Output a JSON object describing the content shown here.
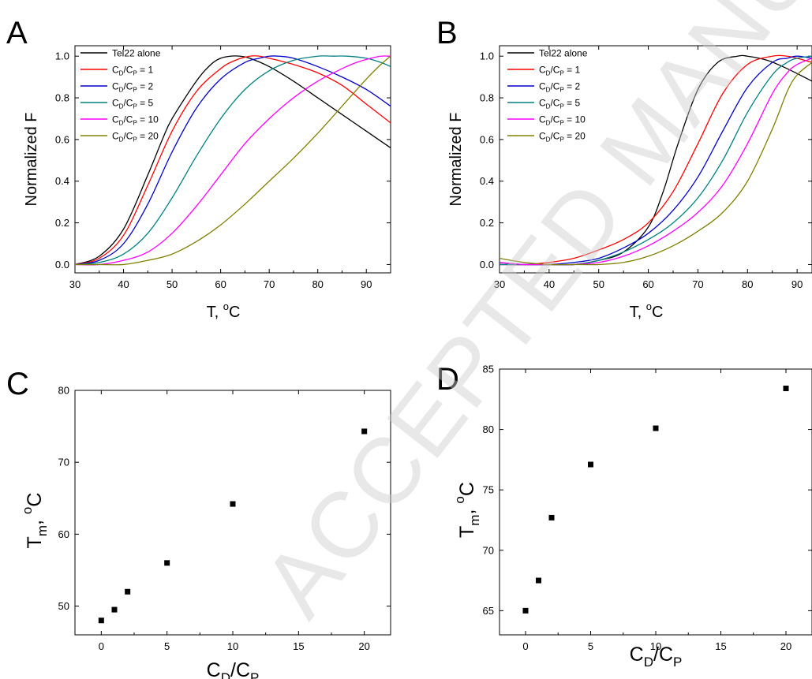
{
  "watermark": "ACCEPTED MANUSCRIPT",
  "colors": {
    "tel22": "#000000",
    "r1": "#ff0000",
    "r2": "#0000cc",
    "r5": "#008080",
    "r10": "#ff00ff",
    "r20": "#808000",
    "points": "#000000"
  },
  "chart_data": [
    {
      "panel": "A",
      "type": "line",
      "xlabel": "T, °C",
      "ylabel": "Normalized F",
      "xlim": [
        30,
        95
      ],
      "ylim": [
        -0.04,
        1.05
      ],
      "xticks": [
        "30",
        "40",
        "50",
        "60",
        "70",
        "80",
        "90"
      ],
      "yticks": [
        "0.0",
        "0.2",
        "0.4",
        "0.6",
        "0.8",
        "1.0"
      ],
      "legend": "top-left",
      "series": [
        {
          "name": "Tel22 alone",
          "color_key": "tel22",
          "x": [
            30,
            35,
            40,
            45,
            48,
            50,
            55,
            58,
            60,
            62,
            64,
            66,
            70,
            75,
            80,
            85,
            90,
            95
          ],
          "y": [
            0.0,
            0.04,
            0.17,
            0.43,
            0.6,
            0.7,
            0.88,
            0.96,
            0.99,
            1.0,
            1.0,
            0.99,
            0.95,
            0.88,
            0.8,
            0.72,
            0.64,
            0.56
          ]
        },
        {
          "name": "C",
          "label_sub1": "D",
          "label_mid": "/C",
          "label_sub2": "P",
          "label_end": " = 1",
          "color_key": "r1",
          "x": [
            30,
            35,
            40,
            45,
            50,
            55,
            60,
            63,
            66,
            68,
            70,
            75,
            80,
            85,
            90,
            95
          ],
          "y": [
            0.0,
            0.03,
            0.14,
            0.38,
            0.64,
            0.83,
            0.94,
            0.98,
            1.0,
            1.0,
            0.99,
            0.96,
            0.92,
            0.86,
            0.77,
            0.68
          ]
        },
        {
          "name": "C",
          "label_sub1": "D",
          "label_mid": "/C",
          "label_sub2": "P",
          "label_end": " = 2",
          "color_key": "r2",
          "x": [
            30,
            35,
            40,
            45,
            50,
            55,
            60,
            65,
            68,
            70,
            72,
            75,
            80,
            85,
            90,
            95
          ],
          "y": [
            0.0,
            0.02,
            0.1,
            0.29,
            0.54,
            0.75,
            0.89,
            0.97,
            0.99,
            1.0,
            1.0,
            0.99,
            0.95,
            0.9,
            0.84,
            0.76
          ]
        },
        {
          "name": "C",
          "label_sub1": "D",
          "label_mid": "/C",
          "label_sub2": "P",
          "label_end": " = 5",
          "color_key": "r5",
          "x": [
            30,
            35,
            40,
            45,
            50,
            55,
            60,
            65,
            70,
            75,
            80,
            83,
            86,
            90,
            93,
            95
          ],
          "y": [
            0.0,
            0.01,
            0.05,
            0.15,
            0.32,
            0.52,
            0.7,
            0.84,
            0.93,
            0.98,
            1.0,
            1.0,
            1.0,
            0.99,
            0.97,
            0.95
          ]
        },
        {
          "name": "C",
          "label_sub1": "D",
          "label_mid": "/C",
          "label_sub2": "P",
          "label_end": " = 10",
          "color_key": "r10",
          "x": [
            30,
            35,
            40,
            45,
            50,
            55,
            60,
            65,
            70,
            75,
            80,
            85,
            88,
            91,
            93,
            95
          ],
          "y": [
            0.0,
            0.0,
            0.02,
            0.06,
            0.15,
            0.28,
            0.43,
            0.58,
            0.7,
            0.8,
            0.88,
            0.94,
            0.97,
            0.99,
            1.0,
            1.0
          ]
        },
        {
          "name": "C",
          "label_sub1": "D",
          "label_mid": "/C",
          "label_sub2": "P",
          "label_end": " = 20",
          "color_key": "r20",
          "x": [
            30,
            35,
            40,
            45,
            50,
            55,
            60,
            65,
            70,
            75,
            80,
            85,
            90,
            93,
            95
          ],
          "y": [
            0.0,
            0.0,
            0.0,
            0.02,
            0.05,
            0.11,
            0.19,
            0.29,
            0.4,
            0.51,
            0.63,
            0.76,
            0.89,
            0.96,
            1.0
          ]
        }
      ]
    },
    {
      "panel": "B",
      "type": "line",
      "xlabel": "T, °C",
      "ylabel": "Normalized F",
      "xlim": [
        30,
        93
      ],
      "ylim": [
        -0.04,
        1.05
      ],
      "xticks": [
        "30",
        "40",
        "50",
        "60",
        "70",
        "80",
        "90"
      ],
      "yticks": [
        "0.0",
        "0.2",
        "0.4",
        "0.6",
        "0.8",
        "1.0"
      ],
      "legend": "top-left",
      "series": [
        {
          "name": "Tel22 alone",
          "color_key": "tel22",
          "x": [
            30,
            35,
            40,
            45,
            50,
            55,
            60,
            63,
            66,
            70,
            74,
            78,
            80,
            84,
            88,
            93
          ],
          "y": [
            0.01,
            0.0,
            0.0,
            0.0,
            0.02,
            0.06,
            0.18,
            0.35,
            0.58,
            0.84,
            0.97,
            1.0,
            1.0,
            0.98,
            0.94,
            0.88
          ]
        },
        {
          "name": "C",
          "label_sub1": "D",
          "label_mid": "/C",
          "label_sub2": "P",
          "label_end": " = 1",
          "color_key": "r1",
          "x": [
            30,
            35,
            40,
            45,
            50,
            55,
            60,
            65,
            70,
            75,
            80,
            85,
            88,
            90,
            93
          ],
          "y": [
            0.0,
            0.0,
            0.01,
            0.03,
            0.07,
            0.12,
            0.2,
            0.35,
            0.58,
            0.82,
            0.96,
            1.0,
            1.0,
            0.99,
            0.97
          ]
        },
        {
          "name": "C",
          "label_sub1": "D",
          "label_mid": "/C",
          "label_sub2": "P",
          "label_end": " = 2",
          "color_key": "r2",
          "x": [
            30,
            35,
            40,
            45,
            50,
            55,
            60,
            65,
            70,
            75,
            80,
            85,
            88,
            90,
            93
          ],
          "y": [
            0.0,
            0.0,
            0.0,
            0.01,
            0.03,
            0.08,
            0.15,
            0.26,
            0.42,
            0.64,
            0.85,
            0.97,
            0.99,
            1.0,
            0.99
          ]
        },
        {
          "name": "C",
          "label_sub1": "D",
          "label_mid": "/C",
          "label_sub2": "P",
          "label_end": " = 5",
          "color_key": "r5",
          "x": [
            30,
            35,
            40,
            45,
            50,
            55,
            60,
            65,
            70,
            75,
            80,
            85,
            88,
            90,
            93
          ],
          "y": [
            0.0,
            0.0,
            0.0,
            0.0,
            0.02,
            0.06,
            0.12,
            0.2,
            0.32,
            0.5,
            0.73,
            0.91,
            0.97,
            0.99,
            1.0
          ]
        },
        {
          "name": "C",
          "label_sub1": "D",
          "label_mid": "/C",
          "label_sub2": "P",
          "label_end": " = 10",
          "color_key": "r10",
          "x": [
            30,
            35,
            40,
            45,
            50,
            55,
            60,
            65,
            70,
            75,
            80,
            85,
            88,
            90,
            93
          ],
          "y": [
            0.01,
            0.0,
            0.0,
            0.0,
            0.01,
            0.04,
            0.09,
            0.16,
            0.25,
            0.38,
            0.58,
            0.82,
            0.92,
            0.96,
            0.99
          ]
        },
        {
          "name": "C",
          "label_sub1": "D",
          "label_mid": "/C",
          "label_sub2": "P",
          "label_end": " = 20",
          "color_key": "r20",
          "x": [
            30,
            35,
            40,
            45,
            50,
            55,
            60,
            65,
            70,
            75,
            80,
            85,
            88,
            90,
            93
          ],
          "y": [
            0.03,
            0.01,
            0.0,
            0.0,
            0.0,
            0.01,
            0.04,
            0.09,
            0.16,
            0.25,
            0.4,
            0.65,
            0.83,
            0.91,
            0.97
          ]
        }
      ]
    },
    {
      "panel": "C",
      "type": "scatter",
      "xlabel_main": "C",
      "xlabel_sub1": "D",
      "xlabel_mid": "/C",
      "xlabel_sub2": "P",
      "ylabel_main": "T",
      "ylabel_sub": "m",
      "ylabel_end": ", ",
      "ylabel_sup": "o",
      "ylabel_unit": "C",
      "xlim": [
        -2,
        22
      ],
      "ylim": [
        46,
        80
      ],
      "xticks": [
        "0",
        "5",
        "10",
        "15",
        "20"
      ],
      "yticks": [
        "50",
        "60",
        "70",
        "80"
      ],
      "x": [
        0,
        1,
        2,
        5,
        10,
        20
      ],
      "y": [
        48.0,
        49.5,
        52.0,
        56.0,
        64.2,
        74.3
      ]
    },
    {
      "panel": "D",
      "type": "scatter",
      "xlabel_main": "C",
      "xlabel_sub1": "D",
      "xlabel_mid": "/C",
      "xlabel_sub2": "P",
      "ylabel_main": "T",
      "ylabel_sub": "m",
      "ylabel_end": ", ",
      "ylabel_sup": "o",
      "ylabel_unit": "C",
      "xlim": [
        -2,
        22
      ],
      "ylim": [
        63,
        85
      ],
      "xticks": [
        "0",
        "5",
        "10",
        "15",
        "20"
      ],
      "yticks": [
        "65",
        "70",
        "75",
        "80",
        "85"
      ],
      "x": [
        0,
        1,
        2,
        5,
        10,
        20
      ],
      "y": [
        65.0,
        67.5,
        72.7,
        77.1,
        80.1,
        83.4
      ]
    }
  ]
}
